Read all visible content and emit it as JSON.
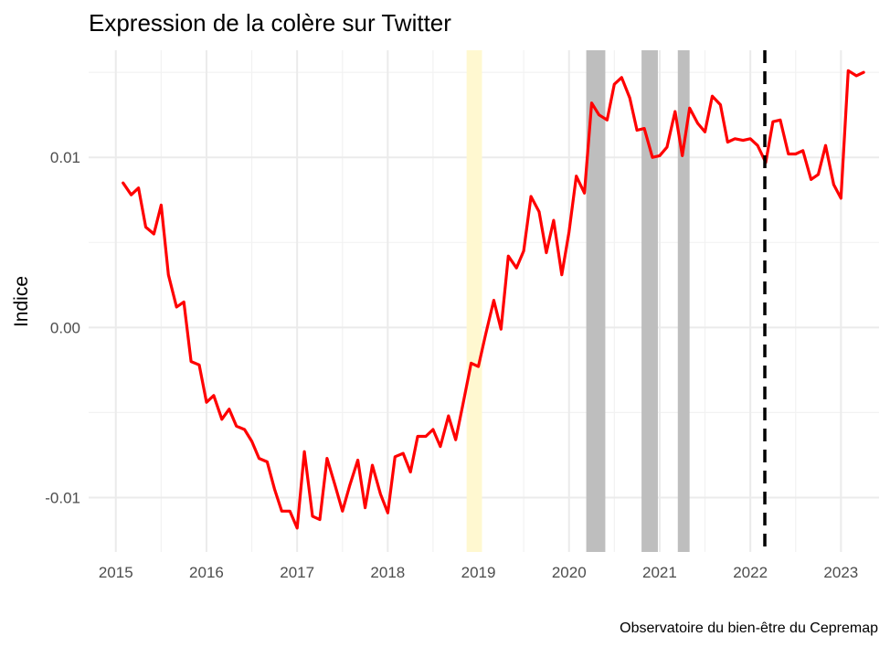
{
  "chart_data": {
    "type": "line",
    "title": "Expression de la colère sur Twitter",
    "ylabel": "Indice",
    "xlabel": "",
    "caption": "Observatoire du bien-être du Cepremap",
    "x_ticks": [
      "2015",
      "2016",
      "2017",
      "2018",
      "2019",
      "2020",
      "2021",
      "2022",
      "2023"
    ],
    "y_ticks": [
      {
        "value": -0.01,
        "label": "-0.01"
      },
      {
        "value": 0.0,
        "label": "0.00"
      },
      {
        "value": 0.01,
        "label": "0.01"
      }
    ],
    "xlim": [
      2014.7,
      2023.42
    ],
    "ylim": [
      -0.0132,
      0.0163
    ],
    "grid": true,
    "series": [
      {
        "color": "#ff0000",
        "points": [
          [
            2015.08,
            0.0085
          ],
          [
            2015.17,
            0.0078
          ],
          [
            2015.25,
            0.0082
          ],
          [
            2015.33,
            0.0059
          ],
          [
            2015.42,
            0.0055
          ],
          [
            2015.5,
            0.0072
          ],
          [
            2015.58,
            0.0031
          ],
          [
            2015.67,
            0.0012
          ],
          [
            2015.75,
            0.0015
          ],
          [
            2015.83,
            -0.002
          ],
          [
            2015.92,
            -0.0022
          ],
          [
            2016.0,
            -0.0044
          ],
          [
            2016.08,
            -0.004
          ],
          [
            2016.17,
            -0.0054
          ],
          [
            2016.25,
            -0.0048
          ],
          [
            2016.33,
            -0.0058
          ],
          [
            2016.42,
            -0.006
          ],
          [
            2016.5,
            -0.0067
          ],
          [
            2016.58,
            -0.0077
          ],
          [
            2016.67,
            -0.0079
          ],
          [
            2016.75,
            -0.0095
          ],
          [
            2016.83,
            -0.0108
          ],
          [
            2016.92,
            -0.0108
          ],
          [
            2017.0,
            -0.0118
          ],
          [
            2017.08,
            -0.0073
          ],
          [
            2017.17,
            -0.0111
          ],
          [
            2017.25,
            -0.0113
          ],
          [
            2017.33,
            -0.0077
          ],
          [
            2017.42,
            -0.0093
          ],
          [
            2017.5,
            -0.0108
          ],
          [
            2017.58,
            -0.0093
          ],
          [
            2017.67,
            -0.0078
          ],
          [
            2017.75,
            -0.0106
          ],
          [
            2017.83,
            -0.0081
          ],
          [
            2017.92,
            -0.0098
          ],
          [
            2018.0,
            -0.0109
          ],
          [
            2018.08,
            -0.0076
          ],
          [
            2018.17,
            -0.0074
          ],
          [
            2018.25,
            -0.0085
          ],
          [
            2018.33,
            -0.0064
          ],
          [
            2018.42,
            -0.0064
          ],
          [
            2018.5,
            -0.006
          ],
          [
            2018.58,
            -0.007
          ],
          [
            2018.67,
            -0.0052
          ],
          [
            2018.75,
            -0.0066
          ],
          [
            2018.83,
            -0.0045
          ],
          [
            2018.92,
            -0.0021
          ],
          [
            2019.0,
            -0.0023
          ],
          [
            2019.08,
            -0.0004
          ],
          [
            2019.17,
            0.0016
          ],
          [
            2019.25,
            -0.0001
          ],
          [
            2019.33,
            0.0042
          ],
          [
            2019.42,
            0.0035
          ],
          [
            2019.5,
            0.0045
          ],
          [
            2019.58,
            0.0077
          ],
          [
            2019.67,
            0.0068
          ],
          [
            2019.75,
            0.0044
          ],
          [
            2019.83,
            0.0063
          ],
          [
            2019.92,
            0.0031
          ],
          [
            2020.0,
            0.0056
          ],
          [
            2020.08,
            0.0089
          ],
          [
            2020.17,
            0.0079
          ],
          [
            2020.25,
            0.0132
          ],
          [
            2020.33,
            0.0125
          ],
          [
            2020.42,
            0.0122
          ],
          [
            2020.5,
            0.0143
          ],
          [
            2020.58,
            0.0147
          ],
          [
            2020.67,
            0.0135
          ],
          [
            2020.75,
            0.0116
          ],
          [
            2020.83,
            0.0117
          ],
          [
            2020.92,
            0.01
          ],
          [
            2021.0,
            0.0101
          ],
          [
            2021.08,
            0.0106
          ],
          [
            2021.17,
            0.0127
          ],
          [
            2021.25,
            0.0101
          ],
          [
            2021.33,
            0.0129
          ],
          [
            2021.42,
            0.012
          ],
          [
            2021.5,
            0.0115
          ],
          [
            2021.58,
            0.0136
          ],
          [
            2021.67,
            0.0131
          ],
          [
            2021.75,
            0.0109
          ],
          [
            2021.83,
            0.0111
          ],
          [
            2021.92,
            0.011
          ],
          [
            2022.0,
            0.0111
          ],
          [
            2022.08,
            0.0107
          ],
          [
            2022.17,
            0.0097
          ],
          [
            2022.25,
            0.0121
          ],
          [
            2022.33,
            0.0122
          ],
          [
            2022.42,
            0.0102
          ],
          [
            2022.5,
            0.0102
          ],
          [
            2022.58,
            0.0104
          ],
          [
            2022.67,
            0.0087
          ],
          [
            2022.75,
            0.009
          ],
          [
            2022.83,
            0.0107
          ],
          [
            2022.92,
            0.0084
          ],
          [
            2023.0,
            0.0076
          ],
          [
            2023.08,
            0.0151
          ],
          [
            2023.17,
            0.0148
          ],
          [
            2023.25,
            0.015
          ]
        ]
      }
    ],
    "shaded_periods": [
      {
        "from": 2018.87,
        "to": 2019.04,
        "color": "#fff8d0"
      },
      {
        "from": 2020.19,
        "to": 2020.4,
        "color": "#bebebe"
      },
      {
        "from": 2020.8,
        "to": 2020.98,
        "color": "#bebebe"
      },
      {
        "from": 2021.2,
        "to": 2021.33,
        "color": "#bebebe"
      }
    ],
    "vline": {
      "x": 2022.16,
      "color": "#000000",
      "style": "dashed"
    }
  }
}
